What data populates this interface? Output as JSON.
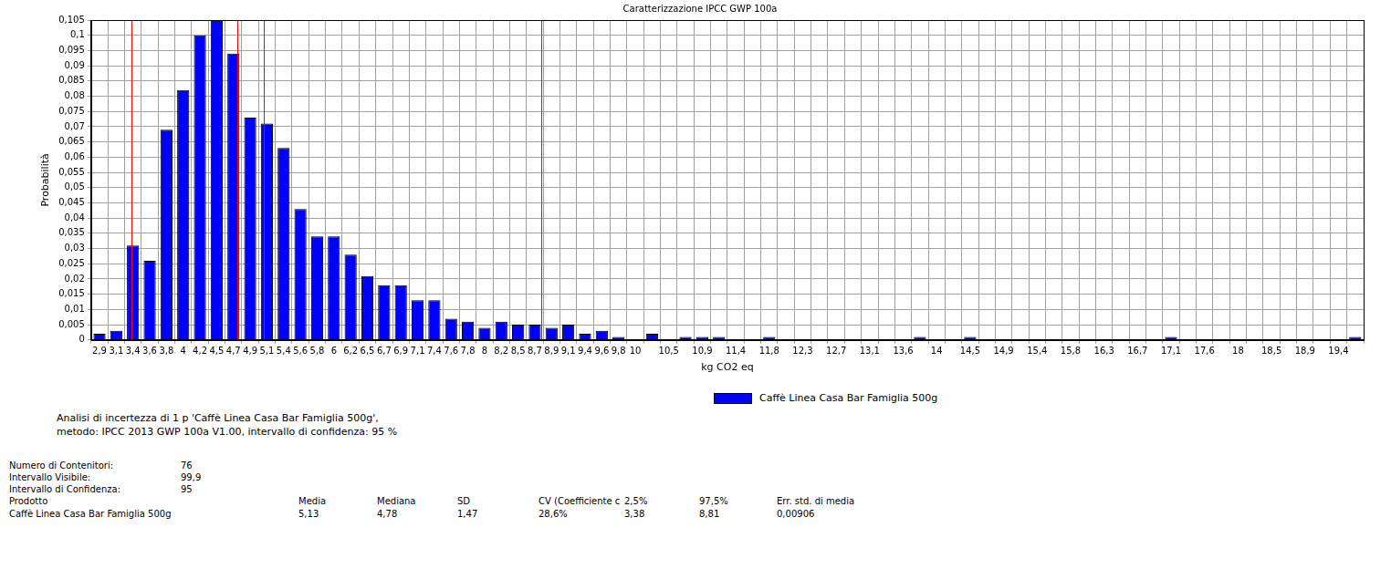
{
  "chart_data": {
    "type": "histogram",
    "title": "Caratterizzazione IPCC GWP 100a",
    "x_label": "kg CO2 eq",
    "y_label": "Probabilità",
    "series": [
      {
        "name": "Caffè Linea Casa Bar Famiglia 500g",
        "color": "#0000ff",
        "values": [
          0.002,
          0.003,
          0.031,
          0.026,
          0.069,
          0.082,
          0.1,
          0.105,
          0.094,
          0.073,
          0.071,
          0.063,
          0.043,
          0.034,
          0.034,
          0.028,
          0.021,
          0.018,
          0.018,
          0.013,
          0.013,
          0.007,
          0.006,
          0.004,
          0.006,
          0.005,
          0.005,
          0.004,
          0.005,
          0.002,
          0.003,
          0.001,
          0,
          0.002,
          0,
          0.001,
          0.001,
          0.001,
          0,
          0,
          0.001,
          0,
          0,
          0,
          0,
          0,
          0,
          0,
          0,
          0.001,
          0,
          0,
          0.001,
          0,
          0,
          0,
          0,
          0,
          0,
          0,
          0,
          0,
          0,
          0,
          0.001,
          0,
          0,
          0,
          0,
          0,
          0,
          0,
          0,
          0,
          0,
          0.001
        ]
      }
    ],
    "bins": [
      2.84,
      3.062,
      3.284,
      3.506,
      3.728,
      3.95,
      4.172,
      4.394,
      4.616,
      4.838,
      5.06,
      5.282,
      5.504,
      5.726,
      5.948,
      6.17,
      6.392,
      6.614,
      6.836,
      7.058,
      7.28,
      7.502,
      7.724,
      7.946,
      8.168,
      8.39,
      8.612,
      8.834,
      9.056,
      9.278,
      9.5,
      9.722,
      9.944,
      10.166,
      10.388,
      10.61,
      10.832,
      11.054,
      11.276,
      11.498,
      11.72,
      11.942,
      12.164,
      12.386,
      12.608,
      12.83,
      13.052,
      13.274,
      13.496,
      13.718,
      13.94,
      14.162,
      14.384,
      14.606,
      14.828,
      15.05,
      15.272,
      15.494,
      15.716,
      15.938,
      16.16,
      16.382,
      16.604,
      16.826,
      17.048,
      17.27,
      17.492,
      17.714,
      17.936,
      18.158,
      18.38,
      18.602,
      18.824,
      19.046,
      19.268,
      19.49,
      19.712
    ],
    "categories": [
      "2,9",
      "3,1",
      "3,4",
      "3,6",
      "3,8",
      "4",
      "4,2",
      "4,5",
      "4,7",
      "4,9",
      "5,1",
      "5,4",
      "5,6",
      "5,8",
      "6",
      "6,2",
      "6,5",
      "6,7",
      "6,9",
      "7,1",
      "7,4",
      "7,6",
      "7,8",
      "8",
      "8,2",
      "8,5",
      "8,7",
      "8,9",
      "9,1",
      "9,4",
      "9,6",
      "9,8",
      "10",
      null,
      "10,5",
      null,
      "10,9",
      null,
      "11,4",
      null,
      "11,8",
      null,
      "12,3",
      null,
      "12,7",
      null,
      "13,1",
      null,
      "13,6",
      null,
      "14",
      null,
      "14,5",
      null,
      "14,9",
      null,
      "15,4",
      null,
      "15,8",
      null,
      "16,3",
      null,
      "16,7",
      null,
      "17,1",
      null,
      "17,6",
      null,
      "18",
      null,
      "18,5",
      null,
      "18,9",
      null,
      "19,4",
      null
    ],
    "xlim": [
      2.84,
      19.712
    ],
    "ylim": [
      0,
      0.105
    ],
    "yticks": [
      0,
      {
        "value": 0.005,
        "label": "0,005"
      },
      {
        "value": 0.01,
        "label": "0,01"
      },
      {
        "value": 0.015,
        "label": "0,015"
      },
      {
        "value": 0.02,
        "label": "0,02"
      },
      {
        "value": 0.025,
        "label": "0,025"
      },
      {
        "value": 0.03,
        "label": "0,03"
      },
      {
        "value": 0.035,
        "label": "0,035"
      },
      {
        "value": 0.04,
        "label": "0,04"
      },
      {
        "value": 0.045,
        "label": "0,045"
      },
      {
        "value": 0.05,
        "label": "0,05"
      },
      {
        "value": 0.055,
        "label": "0,055"
      },
      {
        "value": 0.06,
        "label": "0,06"
      },
      {
        "value": 0.065,
        "label": "0,065"
      },
      {
        "value": 0.07,
        "label": "0,07"
      },
      {
        "value": 0.075,
        "label": "0,075"
      },
      {
        "value": 0.08,
        "label": "0,08"
      },
      {
        "value": 0.085,
        "label": "0,085"
      },
      {
        "value": 0.09,
        "label": "0,09"
      },
      {
        "value": 0.095,
        "label": "0,095"
      },
      {
        "value": 0.1,
        "label": "0,1"
      },
      {
        "value": 0.105,
        "label": "0,105"
      }
    ],
    "reference_lines": {
      "values": [
        3.38,
        4.78,
        5.13,
        8.81
      ],
      "color": "#ff0000"
    },
    "grid": true,
    "legend": "bottom"
  },
  "summary": {
    "info": [
      "Analisi di incertezza di 1 p 'Caffè Linea Casa Bar Famiglia 500g',",
      "metodo: IPCC 2013 GWP 100a V1.00, intervallo di confidenza: 95 %"
    ],
    "settings": [
      [
        "Numero di Contenitori:",
        "76"
      ],
      [
        "Intervallo Visibile:",
        "99,9"
      ],
      [
        "Intervallo di Confidenza:",
        "95"
      ]
    ],
    "table": {
      "header": [
        "Prodotto",
        "Media",
        "Mediana",
        "SD",
        "CV (Coefficiente c",
        "2,5%",
        "97,5%",
        "Err. std. di media"
      ],
      "rows": [
        [
          "Caffè Linea Casa Bar Famiglia 500g",
          "5,13",
          "4,78",
          "1,47",
          "28,6%",
          "3,38",
          "8,81",
          "0,00906"
        ]
      ]
    }
  }
}
